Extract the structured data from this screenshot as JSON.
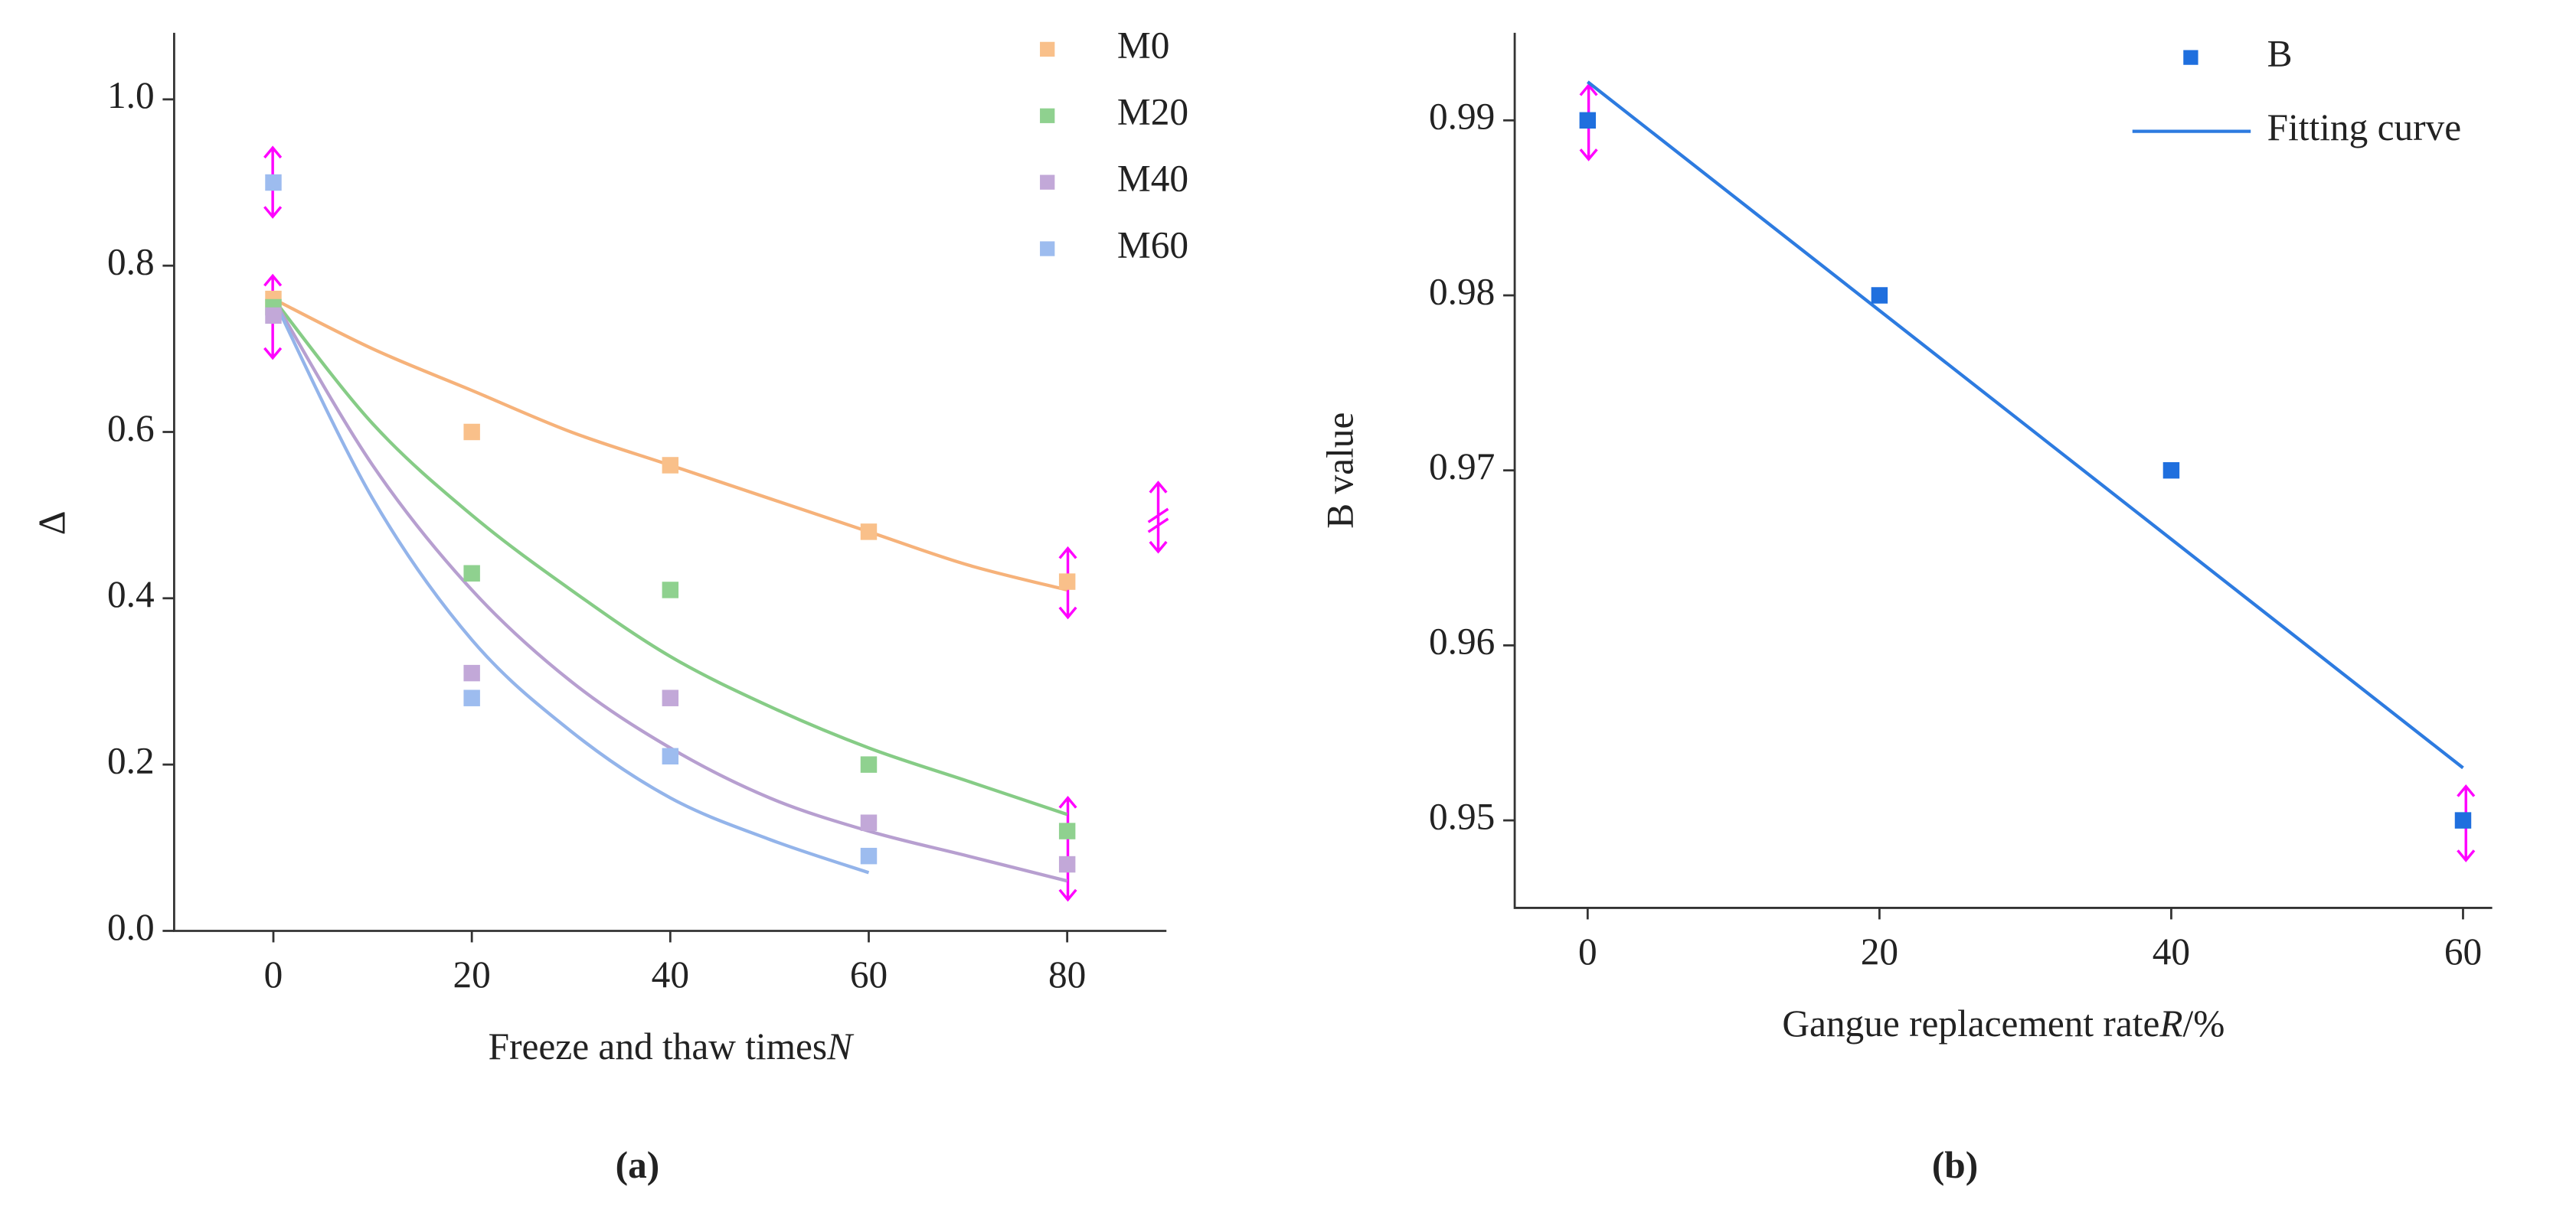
{
  "chart_data": [
    {
      "type": "scatter",
      "caption": "(a)",
      "y_label": "Δ",
      "x_label": "Freeze and thaw times",
      "x_label_var": "N",
      "x": [
        0,
        20,
        40,
        60,
        80
      ],
      "fit_x": [
        0,
        10,
        20,
        30,
        40,
        50,
        60,
        70,
        80
      ],
      "xlim": [
        -10,
        90
      ],
      "xticks": [
        0,
        20,
        40,
        60,
        80
      ],
      "ylim": [
        0,
        1.08
      ],
      "yticks": [
        {
          "value": 0,
          "label": "0.0"
        },
        0.2,
        0.4,
        0.6,
        0.8,
        {
          "value": 1,
          "label": "1.0"
        }
      ],
      "series": [
        {
          "name": "M0",
          "color": "#f9c08a",
          "line_color": "#f6b27a",
          "values": [
            0.76,
            0.6,
            0.56,
            0.48,
            0.42
          ],
          "fit": [
            0.76,
            0.7,
            0.65,
            0.6,
            0.56,
            0.52,
            0.48,
            0.44,
            0.41
          ]
        },
        {
          "name": "M20",
          "color": "#8fd18f",
          "line_color": "#86cc86",
          "values": [
            0.75,
            0.43,
            0.41,
            0.2,
            0.12
          ],
          "fit": [
            0.76,
            0.61,
            0.5,
            0.41,
            0.33,
            0.27,
            0.22,
            0.18,
            0.14
          ]
        },
        {
          "name": "M40",
          "color": "#c2a8d8",
          "line_color": "#b79fd0",
          "values": [
            0.74,
            0.31,
            0.28,
            0.13,
            0.08
          ],
          "fit": [
            0.76,
            0.56,
            0.41,
            0.3,
            0.22,
            0.16,
            0.12,
            0.09,
            0.06
          ]
        },
        {
          "name": "M60",
          "color": "#9dbcef",
          "line_color": "#93b4ea",
          "values": [
            0.9,
            0.28,
            0.21,
            0.09,
            null
          ],
          "fit": [
            0.76,
            0.52,
            0.35,
            0.24,
            0.16,
            0.11,
            0.07,
            null,
            null
          ]
        }
      ]
    },
    {
      "type": "scatter",
      "caption": "(b)",
      "y_label": "B value",
      "x_label": "Gangue replacement rate",
      "x_label_var": "R",
      "x_label_unit": "/%",
      "x": [
        0,
        20,
        40,
        60
      ],
      "fit_x": [
        0,
        60
      ],
      "xlim": [
        -5,
        62
      ],
      "xticks": [
        0,
        20,
        40,
        60
      ],
      "ylim": [
        0.945,
        0.995
      ],
      "yticks": [
        0.95,
        0.96,
        0.97,
        0.98,
        0.99
      ],
      "series": [
        {
          "name": "B",
          "color": "#1f6fde",
          "values": [
            0.99,
            0.98,
            0.97,
            0.95
          ]
        },
        {
          "name": "Fitting curve",
          "color": "#2d7be0",
          "fit": [
            0.9922,
            0.953
          ]
        }
      ]
    }
  ]
}
